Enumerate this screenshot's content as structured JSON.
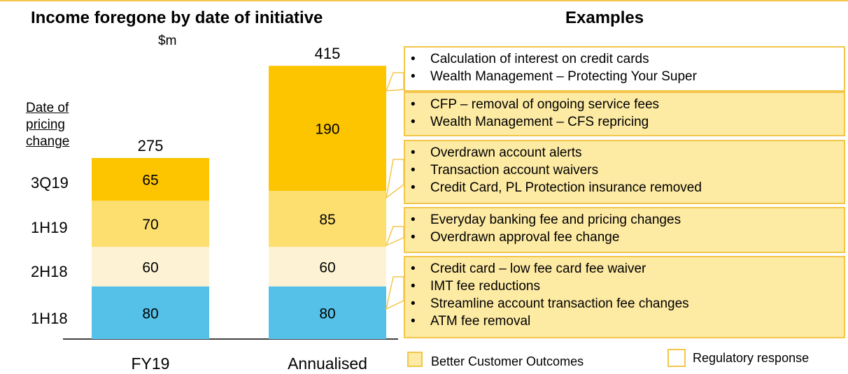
{
  "page": {
    "title": "Income foregone by date of initiative",
    "unit": "$m",
    "examples_title": "Examples",
    "ylabel_lines": [
      "Date of",
      "pricing",
      "change"
    ],
    "periods": [
      "3Q19",
      "1H19",
      "2H18",
      "1H18"
    ]
  },
  "chart_data": {
    "type": "bar",
    "stacked": true,
    "categories": [
      "FY19",
      "Annualised"
    ],
    "totals": [
      275,
      415
    ],
    "series": [
      {
        "name": "1H18",
        "values": [
          80,
          80
        ],
        "color": "#56c1e8"
      },
      {
        "name": "2H18",
        "values": [
          60,
          60
        ],
        "color": "#fdf3d4"
      },
      {
        "name": "1H19",
        "values": [
          70,
          85
        ],
        "color": "#fddf6f"
      },
      {
        "name": "3Q19",
        "values": [
          65,
          0
        ],
        "color": "#fcc500"
      },
      {
        "name": "",
        "values": [
          0,
          190
        ],
        "color": "#fcc500"
      }
    ]
  },
  "examples": [
    {
      "style": "white",
      "items": [
        "Calculation of interest on credit cards",
        "Wealth Management – Protecting Your Super"
      ]
    },
    {
      "style": "gold",
      "items": [
        "CFP – removal of ongoing service fees",
        "Wealth Management – CFS repricing"
      ]
    },
    {
      "style": "gold",
      "items": [
        "Overdrawn account alerts",
        "Transaction account waivers",
        "Credit Card, PL Protection insurance removed"
      ]
    },
    {
      "style": "gold",
      "items": [
        "Everyday banking fee and pricing changes",
        "Overdrawn approval fee change"
      ]
    },
    {
      "style": "gold",
      "items": [
        "Credit card – low fee card fee waiver",
        "IMT fee reductions",
        "Streamline account transaction fee changes",
        "ATM fee removal"
      ]
    }
  ],
  "legend": {
    "better_customer_outcomes": "Better Customer Outcomes",
    "regulatory_response": "Regulatory response",
    "better_color": "#fdeaa3",
    "regulatory_color": "#ffffff"
  }
}
